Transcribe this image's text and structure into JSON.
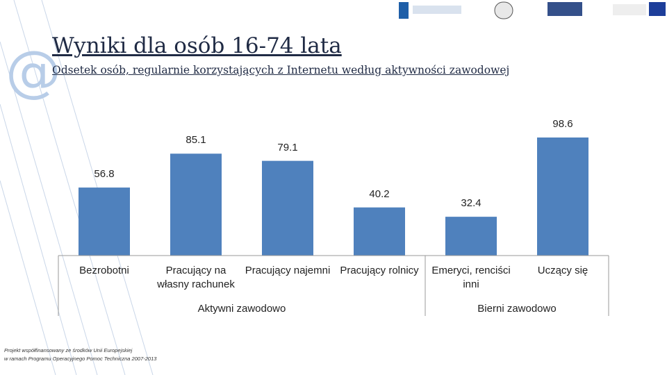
{
  "chart_data": {
    "type": "bar",
    "title": "Wyniki dla osób 16-74 lata",
    "subtitle": "Odsetek osób, regularnie korzystających z Internetu według aktywności zawodowej",
    "categories": [
      "Bezrobotni",
      "Pracujący na własny rachunek",
      "Pracujący najemni",
      "Pracujący rolnicy",
      "Emeryci, renciści inni",
      "Uczący się"
    ],
    "values": [
      56.8,
      85.1,
      79.1,
      40.2,
      32.4,
      98.6
    ],
    "groups": [
      "Aktywni zawodowo",
      "Bierni zawodowo"
    ],
    "color": "#4f81bd"
  },
  "footer": [
    "Projekt współfinansowany ze środków Unii Europejskiej",
    "w ramach Programu Operacyjnego Pomoc Techniczna 2007-2013"
  ]
}
